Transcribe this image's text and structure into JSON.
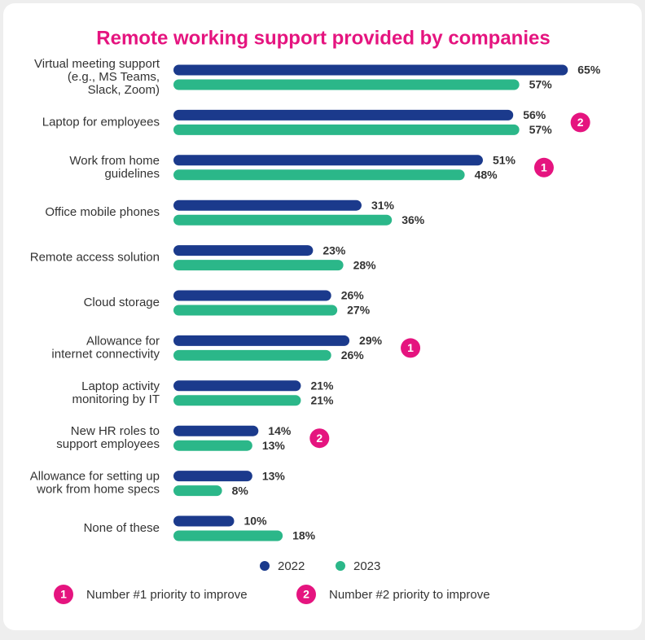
{
  "chart_data": {
    "type": "bar",
    "orientation": "horizontal",
    "title": "Remote working support provided by companies",
    "categories": [
      "Virtual meeting support\n(e.g., MS Teams,\nSlack, Zoom)",
      "Laptop for employees",
      "Work from home\nguidelines",
      "Office mobile phones",
      "Remote access solution",
      "Cloud storage",
      "Allowance for\ninternet connectivity",
      "Laptop activity\nmonitoring by IT",
      "New HR roles to\nsupport employees",
      "Allowance for setting up\nwork from home specs",
      "None of these"
    ],
    "series": [
      {
        "name": "2022",
        "color": "#1b3a8c",
        "values": [
          65,
          56,
          51,
          31,
          23,
          26,
          29,
          21,
          14,
          13,
          10
        ],
        "value_labels": [
          "65%",
          "56%",
          "51%",
          "31%",
          "23%",
          "26%",
          "29%",
          "21%",
          "14%",
          "13%",
          "10%"
        ]
      },
      {
        "name": "2023",
        "color": "#2bb789",
        "values": [
          57,
          57,
          48,
          36,
          28,
          27,
          26,
          21,
          13,
          8,
          18
        ],
        "value_labels": [
          "57%",
          "57%",
          "48%",
          "36%",
          "28%",
          "27%",
          "26%",
          "21%",
          "13%",
          "8%",
          "18%"
        ]
      }
    ],
    "priority_markers": [
      null,
      "2",
      "1",
      null,
      null,
      null,
      "1",
      null,
      "2",
      null,
      null
    ],
    "priority_color": "#e5147f",
    "priority_legend": [
      {
        "marker": "1",
        "label": "Number #1 priority to improve"
      },
      {
        "marker": "2",
        "label": "Number #2 priority to improve"
      }
    ]
  }
}
